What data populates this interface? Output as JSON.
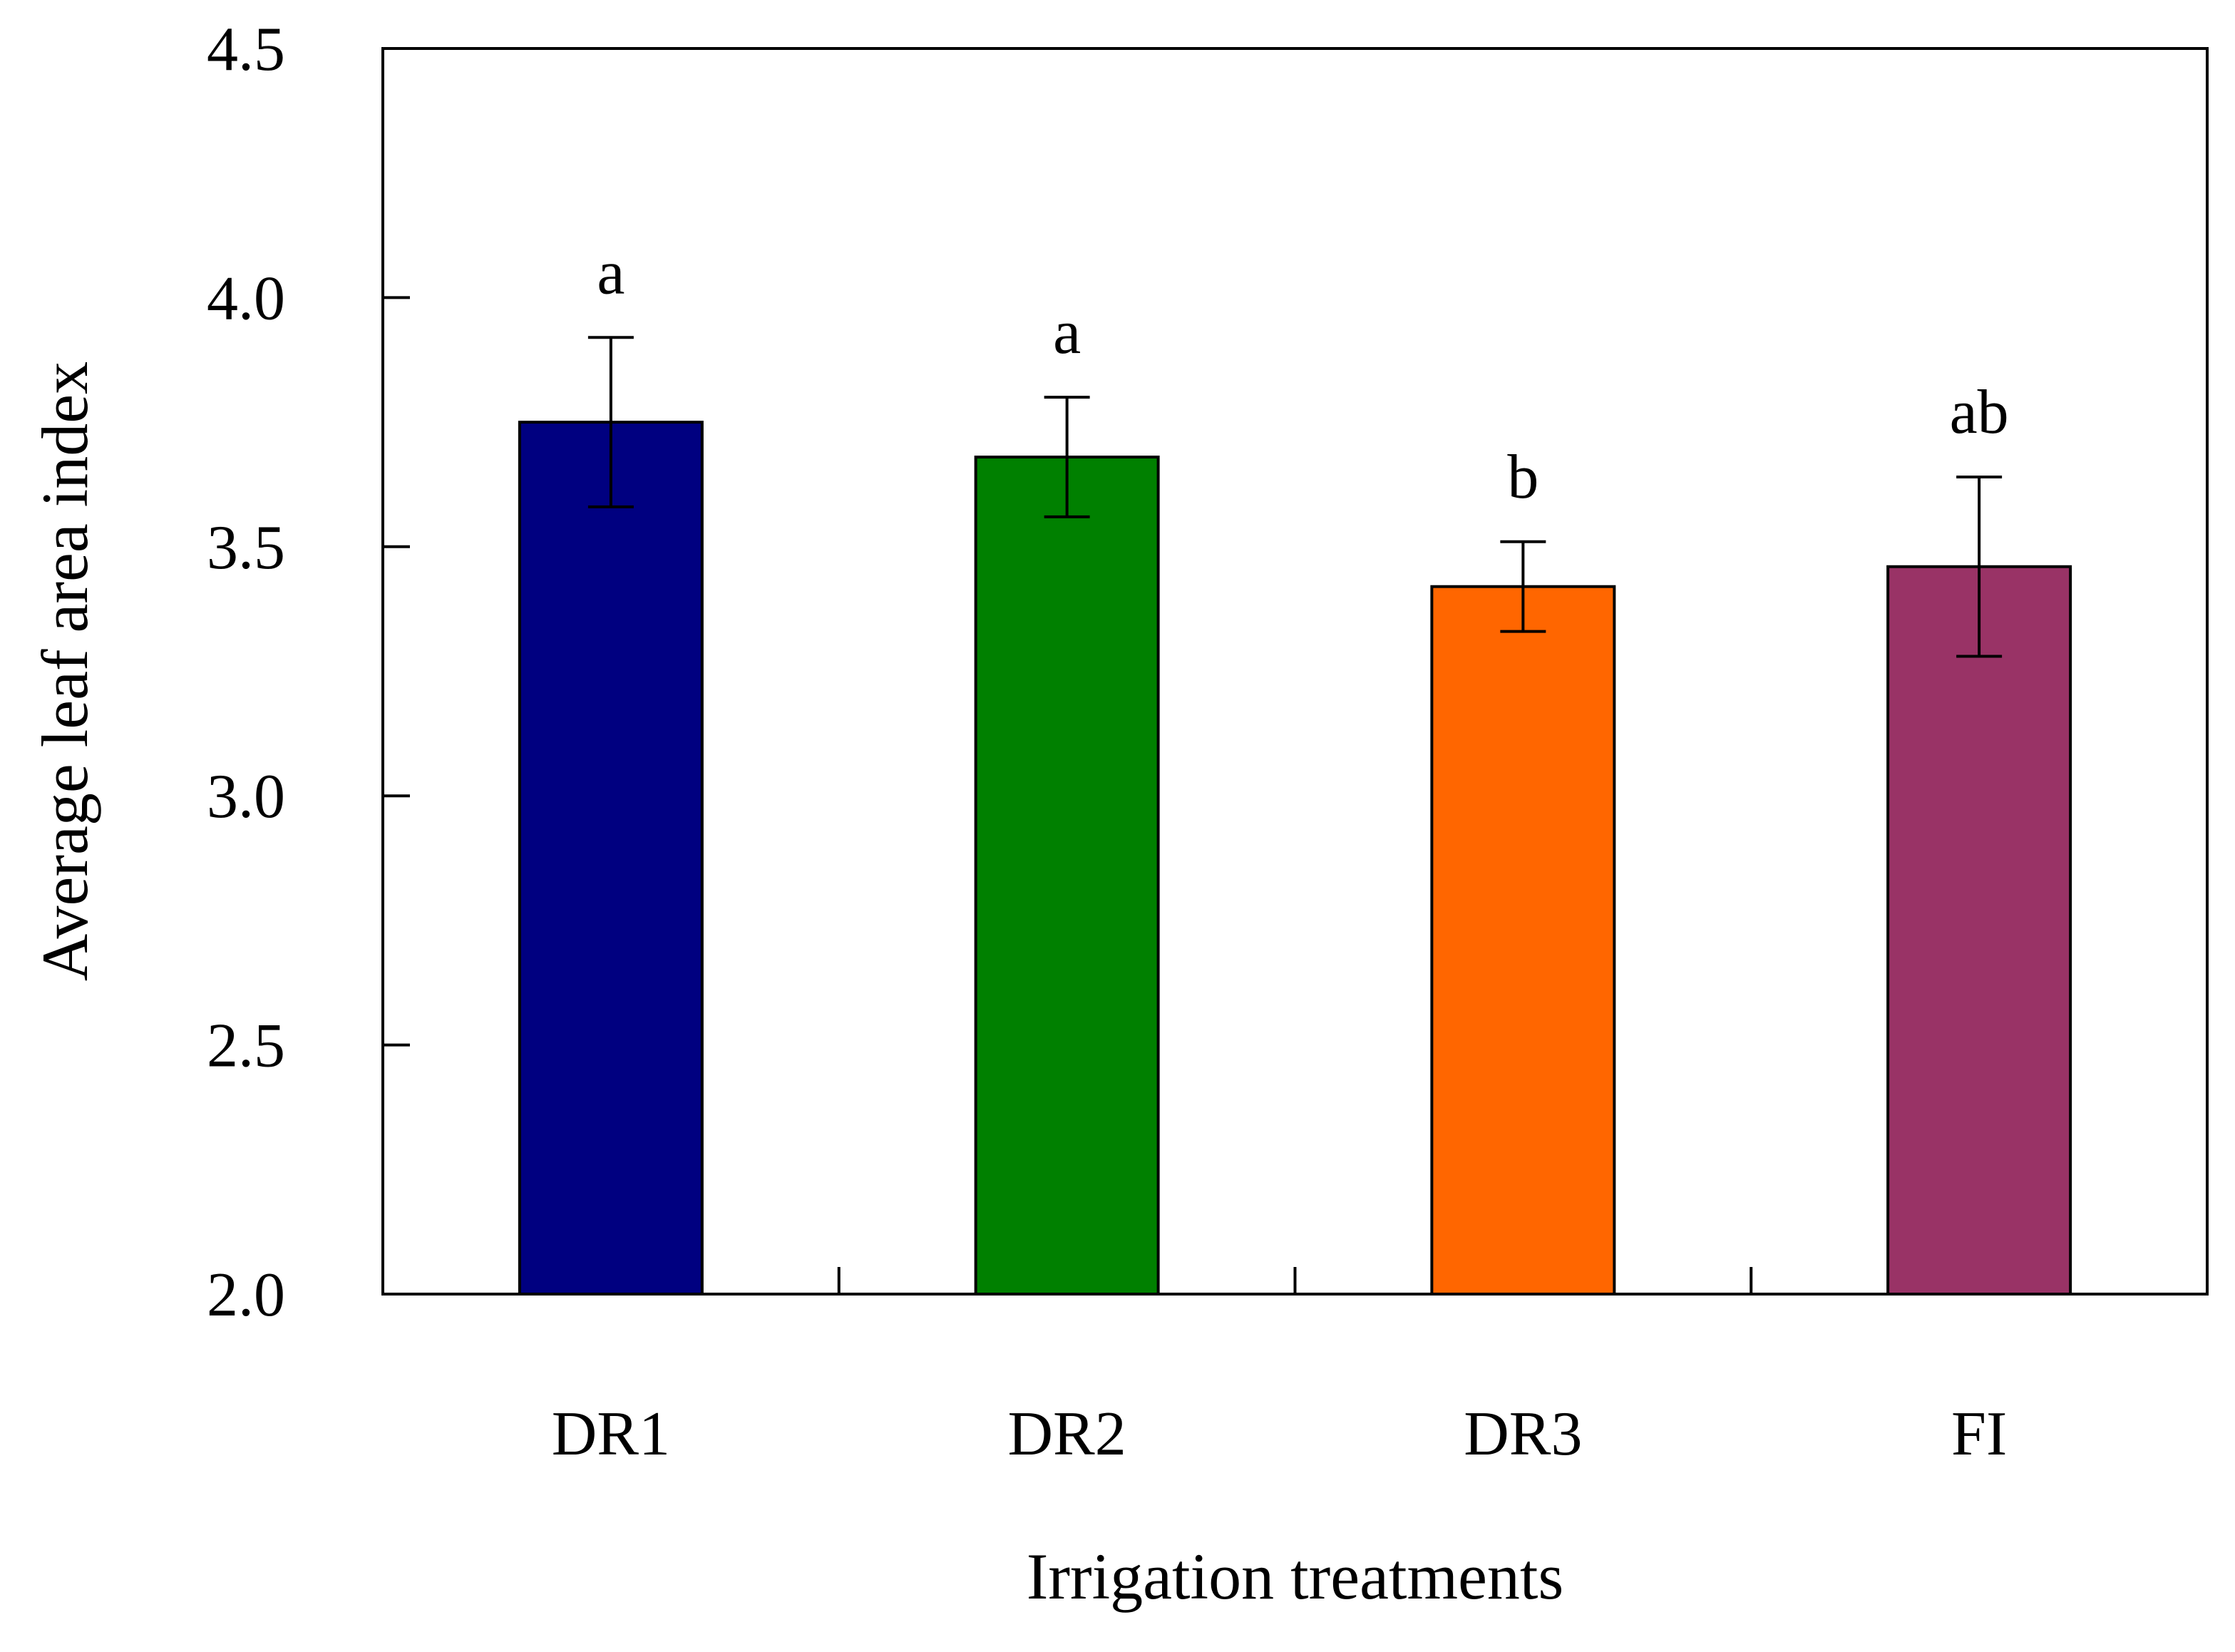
{
  "chart_data": {
    "type": "bar",
    "title": "",
    "xlabel": "Irrigation treatments",
    "ylabel": "Average leaf area index",
    "categories": [
      "DR1",
      "DR2",
      "DR3",
      "FI"
    ],
    "values": [
      3.75,
      3.68,
      3.42,
      3.46
    ],
    "errors": [
      0.17,
      0.12,
      0.09,
      0.18
    ],
    "significance": [
      "a",
      "a",
      "b",
      "ab"
    ],
    "colors": [
      "#000080",
      "#008000",
      "#FF6600",
      "#993366"
    ],
    "ylim": [
      2.0,
      4.5
    ],
    "yticks": [
      2.0,
      2.5,
      3.0,
      3.5,
      4.0,
      4.5
    ],
    "ytick_labels": [
      "2.0",
      "2.5",
      "3.0",
      "3.5",
      "4.0",
      "4.5"
    ],
    "grid": false,
    "legend": "none"
  }
}
